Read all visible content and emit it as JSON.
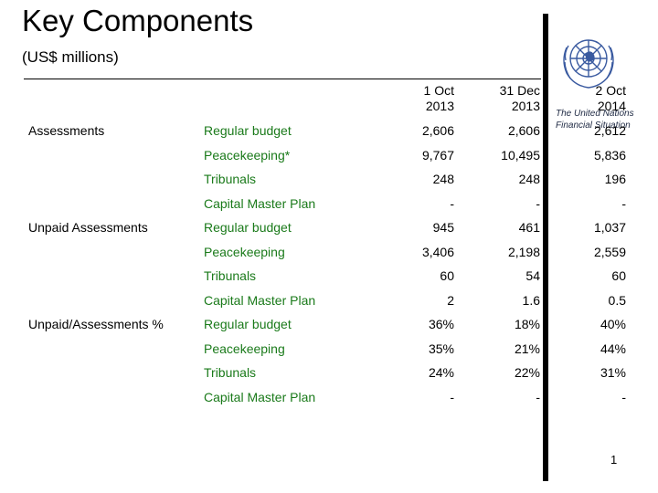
{
  "title": "Key Components",
  "subtitle": "(US$  millions)",
  "org_caption": "The United Nations Financial Situation",
  "page_number": "1",
  "icons": {
    "logo": "un-emblem-icon"
  },
  "colors": {
    "item_text": "#1a7a1a",
    "logo": "#3a5aa0"
  },
  "table": {
    "columns": [
      {
        "line1": "1 Oct",
        "line2": "2013"
      },
      {
        "line1": "31 Dec",
        "line2": "2013"
      },
      {
        "line1": "2 Oct",
        "line2": "2014"
      }
    ],
    "rows": [
      {
        "group": "Assessments",
        "item": "Regular budget",
        "v": [
          "2,606",
          "2,606",
          "2,612"
        ]
      },
      {
        "group": "",
        "item": "Peacekeeping*",
        "v": [
          "9,767",
          "10,495",
          "5,836"
        ]
      },
      {
        "group": "",
        "item": "Tribunals",
        "v": [
          "248",
          "248",
          "196"
        ]
      },
      {
        "group": "",
        "item": "Capital Master Plan",
        "v": [
          "-",
          "-",
          "-"
        ]
      },
      {
        "group": "Unpaid Assessments",
        "item": "Regular budget",
        "v": [
          "945",
          "461",
          "1,037"
        ]
      },
      {
        "group": "",
        "item": "Peacekeeping",
        "v": [
          "3,406",
          "2,198",
          "2,559"
        ]
      },
      {
        "group": "",
        "item": "Tribunals",
        "v": [
          "60",
          "54",
          "60"
        ]
      },
      {
        "group": "",
        "item": "Capital Master Plan",
        "v": [
          "2",
          "1.6",
          "0.5"
        ]
      },
      {
        "group": "Unpaid/Assessments %",
        "item": "Regular budget",
        "v": [
          "36%",
          "18%",
          "40%"
        ]
      },
      {
        "group": "",
        "item": "Peacekeeping",
        "v": [
          "35%",
          "21%",
          "44%"
        ]
      },
      {
        "group": "",
        "item": "Tribunals",
        "v": [
          "24%",
          "22%",
          "31%"
        ]
      },
      {
        "group": "",
        "item": "Capital Master Plan",
        "v": [
          "-",
          "-",
          "-"
        ]
      }
    ]
  }
}
